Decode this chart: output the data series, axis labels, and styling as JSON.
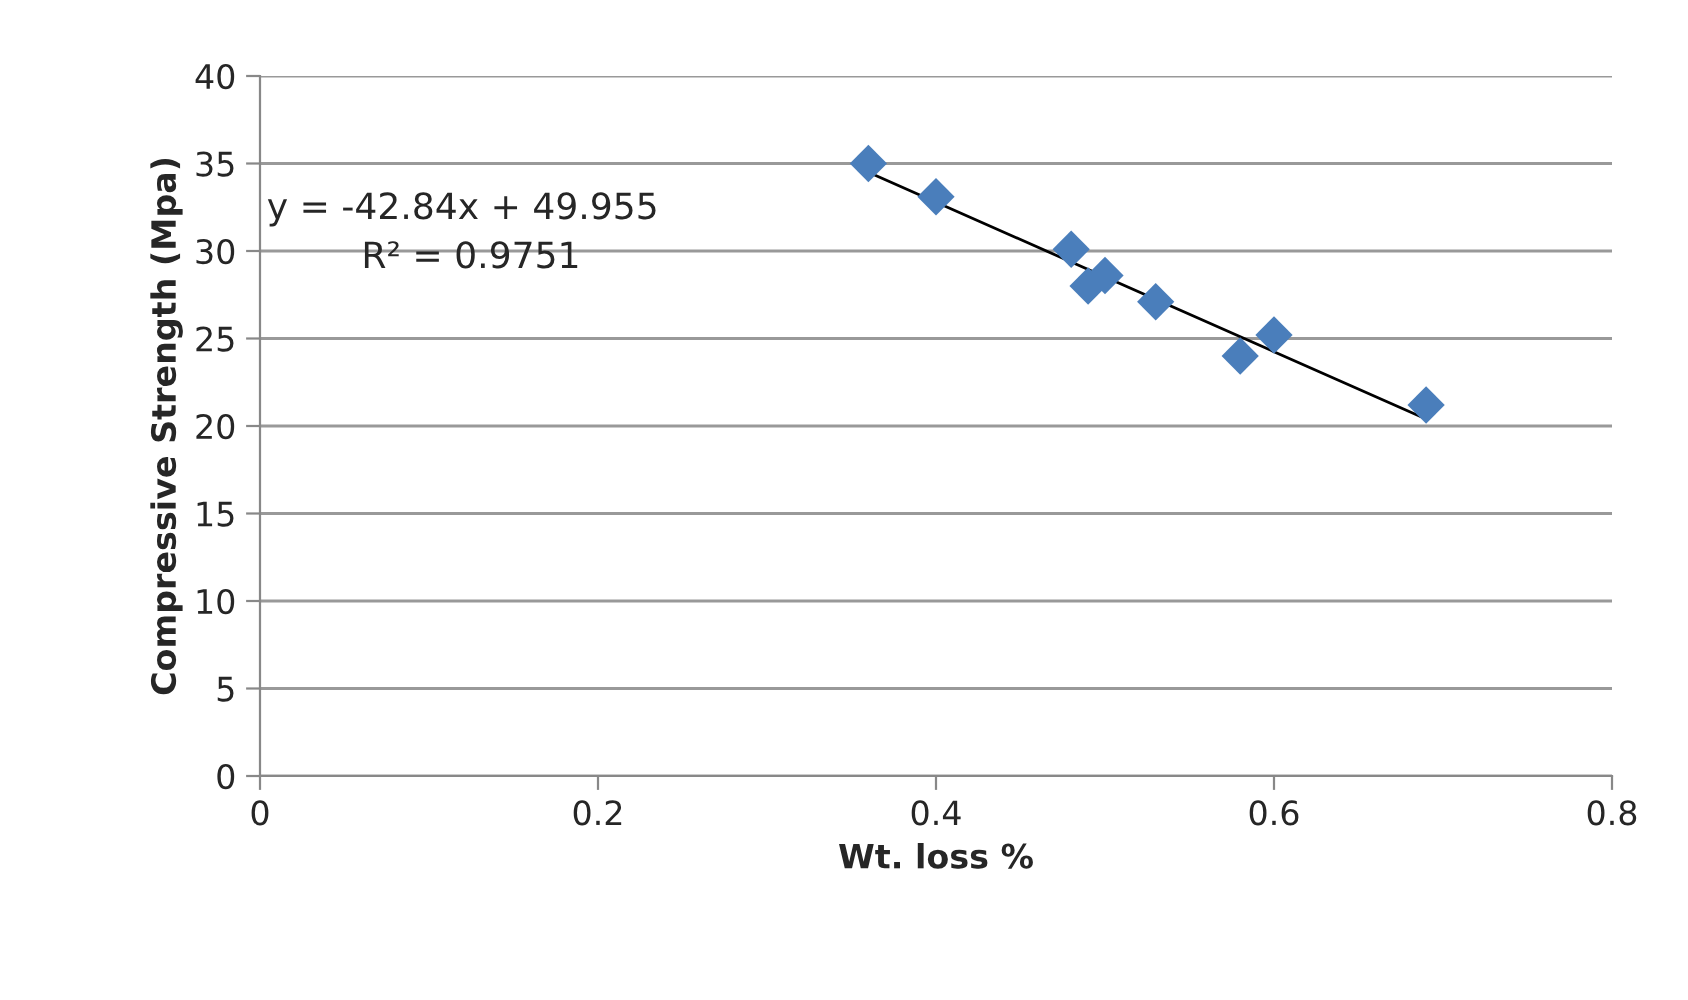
{
  "chart_data": {
    "type": "scatter",
    "xlabel": "Wt. loss %",
    "ylabel": "Compressive Strength (Mpa)",
    "series": [
      {
        "color": "#4a7ebb",
        "marker": "diamond",
        "x": [
          0.36,
          0.4,
          0.48,
          0.49,
          0.5,
          0.53,
          0.58,
          0.6,
          0.69
        ],
        "values": [
          35.0,
          33.1,
          30.1,
          28.0,
          28.6,
          27.1,
          24.0,
          25.2,
          21.2
        ]
      },
      {
        "type": "line",
        "color": "#000000",
        "marker": "none",
        "x": [
          0.36,
          0.69
        ],
        "values": [
          34.5,
          20.4
        ]
      }
    ],
    "xlim": [
      0,
      0.8
    ],
    "xticks": [
      0,
      0.2,
      0.4,
      0.6,
      0.8
    ],
    "ylim": [
      0,
      40
    ],
    "yticks": [
      0,
      5,
      10,
      15,
      20,
      25,
      30,
      35,
      40
    ],
    "grid": "y",
    "annotations": [
      "y = -42.84x + 49.955",
      "R² = 0.9751"
    ]
  }
}
